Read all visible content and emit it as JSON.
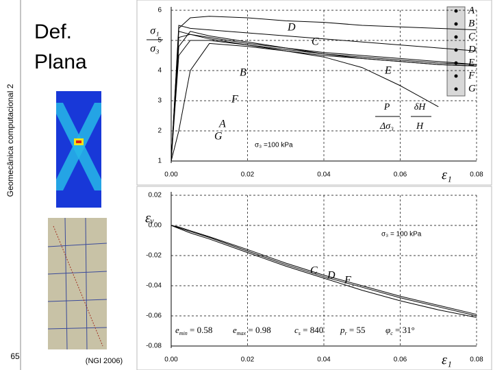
{
  "slide": {
    "side_title": "Geomecânica computacional 2",
    "page_number": "65",
    "title_lines": [
      "Def.",
      "Plana"
    ],
    "caption": "(NGI 2006)"
  },
  "chart_data": [
    {
      "type": "line",
      "y_label": {
        "numerator": "σ₁",
        "denominator": "σ₃"
      },
      "x_label": "ε₁",
      "annotation": "σ₃ =100 kPa",
      "fractions": [
        {
          "numerator": "P",
          "denominator": "Δσ₃"
        },
        {
          "numerator": "δH",
          "denominator": "H"
        }
      ],
      "x": [
        0,
        0.002,
        0.005,
        0.01,
        0.02,
        0.03,
        0.04,
        0.05,
        0.06,
        0.07,
        0.08
      ],
      "series": [
        {
          "name": "A",
          "color": "#000000",
          "values": [
            1,
            5.3,
            5.2,
            5.05,
            4.85,
            4.65,
            4.45,
            4.1,
            3.5,
            2.8,
            null
          ]
        },
        {
          "name": "B",
          "color": "#000000",
          "values": [
            1,
            4.8,
            5.3,
            5.15,
            4.95,
            4.75,
            4.55,
            4.4,
            4.3,
            4.2,
            4.15
          ]
        },
        {
          "name": "C",
          "color": "#000000",
          "values": [
            1,
            5.5,
            5.4,
            5.35,
            5.25,
            5.15,
            5.05,
            4.95,
            4.85,
            4.75,
            4.65
          ]
        },
        {
          "name": "D",
          "color": "#000000",
          "values": [
            1,
            5.4,
            5.75,
            5.8,
            5.75,
            5.65,
            5.6,
            5.5,
            5.45,
            5.4,
            5.35
          ]
        },
        {
          "name": "E",
          "color": "#000000",
          "values": [
            1,
            5.1,
            5.2,
            5.1,
            4.9,
            4.75,
            4.6,
            4.5,
            4.4,
            4.3,
            4.2
          ]
        },
        {
          "name": "F",
          "color": "#000000",
          "values": [
            1,
            4.5,
            5.0,
            5.0,
            4.85,
            4.7,
            4.55,
            4.45,
            4.35,
            4.25,
            4.2
          ]
        },
        {
          "name": "G",
          "color": "#000000",
          "values": [
            1,
            2.0,
            4.0,
            4.9,
            4.8,
            4.65,
            4.5,
            4.4,
            4.3,
            4.2,
            4.15
          ]
        }
      ],
      "xlim": [
        0,
        0.08
      ],
      "ylim": [
        1,
        6
      ],
      "xticks": [
        {
          "value": 0,
          "label": "0.00"
        },
        0.02,
        0.04,
        0.06,
        0.08
      ],
      "yticks": [
        1,
        2,
        3,
        4,
        5,
        6
      ],
      "grid": true
    },
    {
      "type": "line",
      "y_label": "εᵥ",
      "x_label": "ε₁",
      "annotation": "σ₃ = 100 kPa",
      "parameters": [
        {
          "symbol": "e",
          "sub": "min",
          "text": " = 0.58"
        },
        {
          "symbol": "e",
          "sub": "max",
          "text": " = 0.98"
        },
        {
          "symbol": "c",
          "sub": "s",
          "text": " = 840"
        },
        {
          "symbol": "p",
          "sub": "r",
          "text": " = 55"
        },
        {
          "symbol": "φ",
          "sub": "c",
          "text": " = 31°"
        }
      ],
      "x": [
        0,
        0.002,
        0.005,
        0.01,
        0.02,
        0.03,
        0.04,
        0.05,
        0.06,
        0.07,
        0.08
      ],
      "series": [
        {
          "name": "C",
          "color": "#000000",
          "values": [
            0,
            -0.0015,
            -0.004,
            -0.008,
            -0.017,
            -0.026,
            -0.034,
            -0.041,
            -0.048,
            -0.054,
            -0.06
          ]
        },
        {
          "name": "D",
          "color": "#000000",
          "values": [
            0,
            -0.001,
            -0.0035,
            -0.0075,
            -0.016,
            -0.025,
            -0.033,
            -0.04,
            -0.047,
            -0.053,
            -0.059
          ]
        },
        {
          "name": "F",
          "color": "#000000",
          "values": [
            0,
            -0.002,
            -0.005,
            -0.009,
            -0.018,
            -0.027,
            -0.035,
            -0.043,
            -0.05,
            -0.056,
            -0.061
          ]
        }
      ],
      "xlim": [
        0,
        0.08
      ],
      "ylim": [
        -0.08,
        0.02
      ],
      "xticks": [
        {
          "value": 0,
          "label": "0.00"
        },
        0.02,
        0.04,
        0.06,
        0.08
      ],
      "yticks": [
        0.02,
        {
          "value": 0,
          "label": "0.00"
        },
        -0.02,
        -0.04,
        -0.06,
        -0.08
      ],
      "grid": true
    }
  ]
}
